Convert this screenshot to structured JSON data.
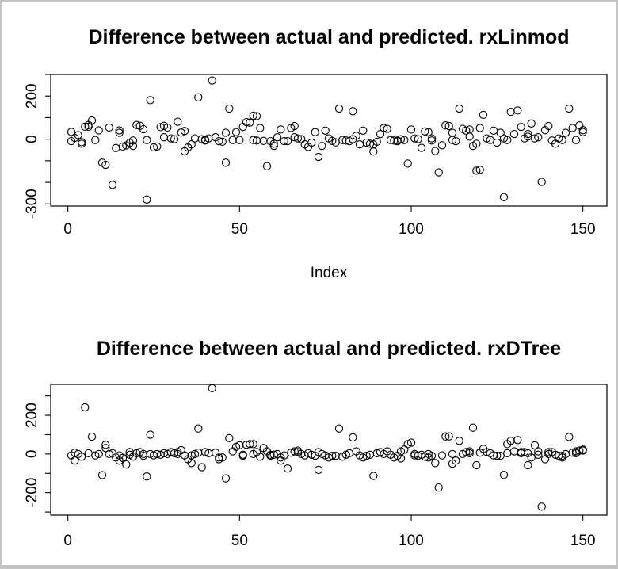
{
  "window": {
    "background": "#ffffff",
    "border_color": "#c4c4c4",
    "foreground": "#000000"
  },
  "chart_data": [
    {
      "type": "scatter",
      "title": "Difference between actual and predicted. rxLinmod",
      "xlabel": "Index",
      "ylabel": "",
      "marker": "open-circle",
      "grid": false,
      "legend": null,
      "xlim": [
        -5,
        157
      ],
      "ylim": [
        -310,
        300
      ],
      "xticks": [
        0,
        50,
        100,
        150
      ],
      "yticks": [
        300,
        200,
        100,
        0,
        -100,
        -200,
        -300
      ],
      "ytick_labeled": [
        200,
        0,
        -300
      ],
      "points": [
        [
          1,
          -9
        ],
        [
          1,
          34
        ],
        [
          2,
          6
        ],
        [
          3,
          19
        ],
        [
          4,
          -14
        ],
        [
          4,
          -21
        ],
        [
          5,
          58
        ],
        [
          6,
          66
        ],
        [
          6,
          58
        ],
        [
          7,
          87
        ],
        [
          8,
          -4
        ],
        [
          9,
          41
        ],
        [
          10,
          -109
        ],
        [
          11,
          -119
        ],
        [
          12,
          54
        ],
        [
          13,
          -212
        ],
        [
          14,
          -41
        ],
        [
          15,
          41
        ],
        [
          15,
          30
        ],
        [
          16,
          -34
        ],
        [
          17,
          -29
        ],
        [
          18,
          -17
        ],
        [
          19,
          -6
        ],
        [
          19,
          -31
        ],
        [
          20,
          66
        ],
        [
          21,
          62
        ],
        [
          22,
          46
        ],
        [
          23,
          -280
        ],
        [
          23,
          -4
        ],
        [
          24,
          181
        ],
        [
          25,
          -38
        ],
        [
          26,
          -34
        ],
        [
          27,
          56
        ],
        [
          28,
          9
        ],
        [
          28,
          62
        ],
        [
          29,
          54
        ],
        [
          30,
          4
        ],
        [
          31,
          0
        ],
        [
          32,
          81
        ],
        [
          33,
          31
        ],
        [
          34,
          -56
        ],
        [
          34,
          38
        ],
        [
          35,
          -38
        ],
        [
          36,
          -24
        ],
        [
          37,
          4
        ],
        [
          38,
          194
        ],
        [
          39,
          0
        ],
        [
          40,
          -2
        ],
        [
          40,
          -6
        ],
        [
          41,
          4
        ],
        [
          42,
          272
        ],
        [
          43,
          9
        ],
        [
          44,
          -9
        ],
        [
          45,
          -12
        ],
        [
          46,
          30
        ],
        [
          46,
          -109
        ],
        [
          47,
          142
        ],
        [
          48,
          -4
        ],
        [
          49,
          33
        ],
        [
          50,
          -4
        ],
        [
          51,
          57
        ],
        [
          52,
          79
        ],
        [
          53,
          77
        ],
        [
          54,
          -4
        ],
        [
          54,
          109
        ],
        [
          55,
          107
        ],
        [
          55,
          -6
        ],
        [
          56,
          52
        ],
        [
          57,
          -8
        ],
        [
          58,
          -125
        ],
        [
          59,
          -9
        ],
        [
          60,
          -31
        ],
        [
          60,
          -21
        ],
        [
          61,
          9
        ],
        [
          62,
          45
        ],
        [
          63,
          -9
        ],
        [
          64,
          -9
        ],
        [
          65,
          52
        ],
        [
          66,
          61
        ],
        [
          66,
          9
        ],
        [
          67,
          4
        ],
        [
          68,
          0
        ],
        [
          69,
          -24
        ],
        [
          70,
          -36
        ],
        [
          71,
          -16
        ],
        [
          72,
          33
        ],
        [
          73,
          -82
        ],
        [
          74,
          -31
        ],
        [
          75,
          40
        ],
        [
          76,
          4
        ],
        [
          77,
          -8
        ],
        [
          78,
          -15
        ],
        [
          79,
          142
        ],
        [
          80,
          -4
        ],
        [
          81,
          -6
        ],
        [
          82,
          -9
        ],
        [
          83,
          0
        ],
        [
          83,
          130
        ],
        [
          84,
          16
        ],
        [
          85,
          -24
        ],
        [
          86,
          40
        ],
        [
          87,
          -16
        ],
        [
          88,
          -21
        ],
        [
          89,
          -24
        ],
        [
          89,
          -57
        ],
        [
          90,
          -12
        ],
        [
          91,
          24
        ],
        [
          92,
          52
        ],
        [
          93,
          48
        ],
        [
          94,
          -4
        ],
        [
          95,
          -6
        ],
        [
          96,
          -9
        ],
        [
          96,
          -6
        ],
        [
          97,
          0
        ],
        [
          98,
          -4
        ],
        [
          99,
          -113
        ],
        [
          100,
          45
        ],
        [
          101,
          4
        ],
        [
          102,
          0
        ],
        [
          103,
          -40
        ],
        [
          104,
          36
        ],
        [
          105,
          33
        ],
        [
          106,
          4
        ],
        [
          106,
          -6
        ],
        [
          107,
          -55
        ],
        [
          108,
          -154
        ],
        [
          109,
          -28
        ],
        [
          110,
          64
        ],
        [
          111,
          61
        ],
        [
          112,
          30
        ],
        [
          112,
          -4
        ],
        [
          113,
          -9
        ],
        [
          114,
          142
        ],
        [
          115,
          48
        ],
        [
          116,
          40
        ],
        [
          117,
          45
        ],
        [
          117,
          12
        ],
        [
          118,
          -31
        ],
        [
          119,
          -146
        ],
        [
          119,
          -21
        ],
        [
          120,
          52
        ],
        [
          120,
          -142
        ],
        [
          121,
          113
        ],
        [
          122,
          4
        ],
        [
          123,
          -4
        ],
        [
          124,
          40
        ],
        [
          125,
          -16
        ],
        [
          126,
          30
        ],
        [
          127,
          -269
        ],
        [
          127,
          4
        ],
        [
          128,
          -4
        ],
        [
          129,
          127
        ],
        [
          130,
          24
        ],
        [
          131,
          133
        ],
        [
          132,
          57
        ],
        [
          133,
          4
        ],
        [
          134,
          24
        ],
        [
          134,
          12
        ],
        [
          135,
          73
        ],
        [
          136,
          4
        ],
        [
          137,
          9
        ],
        [
          138,
          -198
        ],
        [
          139,
          42
        ],
        [
          140,
          61
        ],
        [
          141,
          -6
        ],
        [
          142,
          -21
        ],
        [
          143,
          4
        ],
        [
          144,
          -4
        ],
        [
          145,
          30
        ],
        [
          146,
          142
        ],
        [
          147,
          52
        ],
        [
          148,
          -4
        ],
        [
          149,
          64
        ],
        [
          150,
          42
        ],
        [
          150,
          33
        ]
      ]
    },
    {
      "type": "scatter",
      "title": "Difference between actual and predicted. rxDTree",
      "xlabel": "",
      "ylabel": "",
      "marker": "open-circle",
      "grid": false,
      "legend": null,
      "xlim": [
        -5,
        157
      ],
      "ylim": [
        -316,
        360
      ],
      "xticks": [
        0,
        50,
        100,
        150
      ],
      "yticks": [
        300,
        200,
        100,
        0,
        -100,
        -200,
        -300
      ],
      "ytick_labeled": [
        200,
        0,
        -200
      ],
      "points": [
        [
          1,
          -7
        ],
        [
          2,
          7
        ],
        [
          2,
          -34
        ],
        [
          3,
          0
        ],
        [
          4,
          -14
        ],
        [
          5,
          241
        ],
        [
          6,
          4
        ],
        [
          7,
          89
        ],
        [
          8,
          -7
        ],
        [
          9,
          0
        ],
        [
          10,
          -109
        ],
        [
          11,
          48
        ],
        [
          11,
          31
        ],
        [
          12,
          0
        ],
        [
          13,
          4
        ],
        [
          14,
          -18
        ],
        [
          15,
          -34
        ],
        [
          15,
          -7
        ],
        [
          16,
          -20
        ],
        [
          17,
          -54
        ],
        [
          18,
          10
        ],
        [
          18,
          -4
        ],
        [
          19,
          -14
        ],
        [
          20,
          4
        ],
        [
          21,
          10
        ],
        [
          22,
          -9
        ],
        [
          22,
          0
        ],
        [
          23,
          -116
        ],
        [
          24,
          100
        ],
        [
          24,
          0
        ],
        [
          25,
          -7
        ],
        [
          26,
          0
        ],
        [
          27,
          -4
        ],
        [
          28,
          4
        ],
        [
          29,
          0
        ],
        [
          30,
          10
        ],
        [
          31,
          4
        ],
        [
          32,
          10
        ],
        [
          32,
          0
        ],
        [
          33,
          20
        ],
        [
          34,
          -7
        ],
        [
          35,
          -27
        ],
        [
          36,
          -47
        ],
        [
          36,
          -7
        ],
        [
          37,
          0
        ],
        [
          38,
          132
        ],
        [
          38,
          7
        ],
        [
          39,
          -68
        ],
        [
          40,
          10
        ],
        [
          41,
          4
        ],
        [
          42,
          340
        ],
        [
          43,
          7
        ],
        [
          44,
          -18
        ],
        [
          44,
          -27
        ],
        [
          45,
          -18
        ],
        [
          46,
          -126
        ],
        [
          47,
          82
        ],
        [
          48,
          14
        ],
        [
          49,
          37
        ],
        [
          50,
          45
        ],
        [
          51,
          -4
        ],
        [
          51,
          -9
        ],
        [
          52,
          48
        ],
        [
          53,
          51
        ],
        [
          54,
          0
        ],
        [
          54,
          51
        ],
        [
          55,
          10
        ],
        [
          56,
          -14
        ],
        [
          57,
          31
        ],
        [
          58,
          14
        ],
        [
          59,
          -4
        ],
        [
          59,
          -9
        ],
        [
          60,
          -4
        ],
        [
          61,
          0
        ],
        [
          62,
          -18
        ],
        [
          62,
          -34
        ],
        [
          63,
          -7
        ],
        [
          64,
          -75
        ],
        [
          65,
          7
        ],
        [
          66,
          14
        ],
        [
          67,
          10
        ],
        [
          67,
          18
        ],
        [
          68,
          0
        ],
        [
          69,
          -7
        ],
        [
          70,
          4
        ],
        [
          71,
          -4
        ],
        [
          72,
          -9
        ],
        [
          73,
          -82
        ],
        [
          73,
          10
        ],
        [
          74,
          0
        ],
        [
          75,
          -7
        ],
        [
          76,
          -18
        ],
        [
          77,
          -9
        ],
        [
          78,
          -9
        ],
        [
          79,
          132
        ],
        [
          80,
          -14
        ],
        [
          81,
          -4
        ],
        [
          82,
          4
        ],
        [
          83,
          86
        ],
        [
          84,
          14
        ],
        [
          85,
          -7
        ],
        [
          86,
          -18
        ],
        [
          87,
          -9
        ],
        [
          88,
          -4
        ],
        [
          89,
          -113
        ],
        [
          90,
          4
        ],
        [
          91,
          10
        ],
        [
          92,
          0
        ],
        [
          93,
          14
        ],
        [
          94,
          -4
        ],
        [
          95,
          -18
        ],
        [
          96,
          -9
        ],
        [
          97,
          -23
        ],
        [
          97,
          14
        ],
        [
          98,
          23
        ],
        [
          99,
          51
        ],
        [
          100,
          59
        ],
        [
          101,
          -7
        ],
        [
          101,
          0
        ],
        [
          102,
          -9
        ],
        [
          103,
          -4
        ],
        [
          104,
          -14
        ],
        [
          105,
          -18
        ],
        [
          105,
          0
        ],
        [
          106,
          -9
        ],
        [
          107,
          -47
        ],
        [
          108,
          -173
        ],
        [
          109,
          -7
        ],
        [
          110,
          91
        ],
        [
          111,
          91
        ],
        [
          112,
          0
        ],
        [
          112,
          -50
        ],
        [
          113,
          -34
        ],
        [
          114,
          68
        ],
        [
          115,
          0
        ],
        [
          116,
          10
        ],
        [
          117,
          4
        ],
        [
          117,
          14
        ],
        [
          118,
          136
        ],
        [
          119,
          -58
        ],
        [
          120,
          7
        ],
        [
          121,
          27
        ],
        [
          122,
          10
        ],
        [
          123,
          4
        ],
        [
          124,
          -7
        ],
        [
          125,
          -9
        ],
        [
          126,
          -9
        ],
        [
          127,
          -108
        ],
        [
          128,
          4
        ],
        [
          128,
          51
        ],
        [
          129,
          68
        ],
        [
          130,
          14
        ],
        [
          131,
          72
        ],
        [
          132,
          10
        ],
        [
          132,
          4
        ],
        [
          133,
          10
        ],
        [
          134,
          4
        ],
        [
          134,
          -58
        ],
        [
          135,
          -18
        ],
        [
          136,
          45
        ],
        [
          137,
          14
        ],
        [
          137,
          -4
        ],
        [
          138,
          -272
        ],
        [
          139,
          -27
        ],
        [
          140,
          10
        ],
        [
          140,
          0
        ],
        [
          141,
          10
        ],
        [
          142,
          -4
        ],
        [
          143,
          -9
        ],
        [
          144,
          -18
        ],
        [
          144,
          -9
        ],
        [
          145,
          0
        ],
        [
          146,
          88
        ],
        [
          147,
          7
        ],
        [
          148,
          14
        ],
        [
          148,
          4
        ],
        [
          149,
          18
        ],
        [
          150,
          23
        ],
        [
          150,
          18
        ]
      ]
    }
  ]
}
